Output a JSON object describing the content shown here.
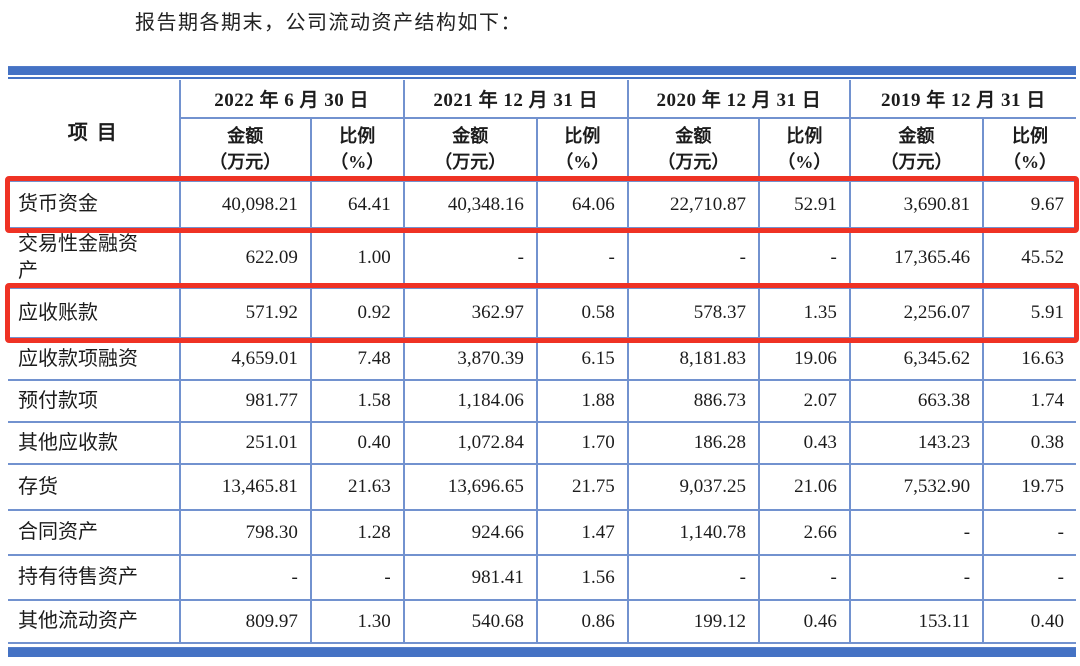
{
  "page": {
    "title": "报告期各期末，公司流动资产结构如下："
  },
  "colors": {
    "bar_blue": "#4472c4",
    "grid_blue": "#7292cf",
    "highlight_red": "#ef3224"
  },
  "table": {
    "item_header": "项  目",
    "period_groups": [
      "2022 年 6 月 30 日",
      "2021 年 12 月 31 日",
      "2020 年 12 月 31 日",
      "2019 年 12 月 31 日"
    ],
    "amount_header": {
      "line1": "金额",
      "line2": "（万元）"
    },
    "ratio_header": {
      "line1": "比例",
      "line2": "（%）"
    },
    "rows": [
      {
        "item": "货币资金",
        "highlight": true,
        "values": [
          "40,098.21",
          "64.41",
          "40,348.16",
          "64.06",
          "22,710.87",
          "52.91",
          "3,690.81",
          "9.67"
        ]
      },
      {
        "item": "交易性金融资产",
        "highlight": false,
        "values": [
          "622.09",
          "1.00",
          "-",
          "-",
          "-",
          "-",
          "17,365.46",
          "45.52"
        ]
      },
      {
        "item": "应收账款",
        "highlight": true,
        "values": [
          "571.92",
          "0.92",
          "362.97",
          "0.58",
          "578.37",
          "1.35",
          "2,256.07",
          "5.91"
        ]
      },
      {
        "item": "应收款项融资",
        "highlight": false,
        "values": [
          "4,659.01",
          "7.48",
          "3,870.39",
          "6.15",
          "8,181.83",
          "19.06",
          "6,345.62",
          "16.63"
        ]
      },
      {
        "item": "预付款项",
        "highlight": false,
        "values": [
          "981.77",
          "1.58",
          "1,184.06",
          "1.88",
          "886.73",
          "2.07",
          "663.38",
          "1.74"
        ]
      },
      {
        "item": "其他应收款",
        "highlight": false,
        "values": [
          "251.01",
          "0.40",
          "1,072.84",
          "1.70",
          "186.28",
          "0.43",
          "143.23",
          "0.38"
        ]
      },
      {
        "item": "存货",
        "highlight": false,
        "values": [
          "13,465.81",
          "21.63",
          "13,696.65",
          "21.75",
          "9,037.25",
          "21.06",
          "7,532.90",
          "19.75"
        ]
      },
      {
        "item": "合同资产",
        "highlight": false,
        "values": [
          "798.30",
          "1.28",
          "924.66",
          "1.47",
          "1,140.78",
          "2.66",
          "-",
          "-"
        ]
      },
      {
        "item": "持有待售资产",
        "highlight": false,
        "values": [
          "-",
          "-",
          "981.41",
          "1.56",
          "-",
          "-",
          "-",
          "-"
        ]
      },
      {
        "item": "其他流动资产",
        "highlight": false,
        "values": [
          "809.97",
          "1.30",
          "540.68",
          "0.86",
          "199.12",
          "0.46",
          "153.11",
          "0.40"
        ]
      }
    ]
  }
}
